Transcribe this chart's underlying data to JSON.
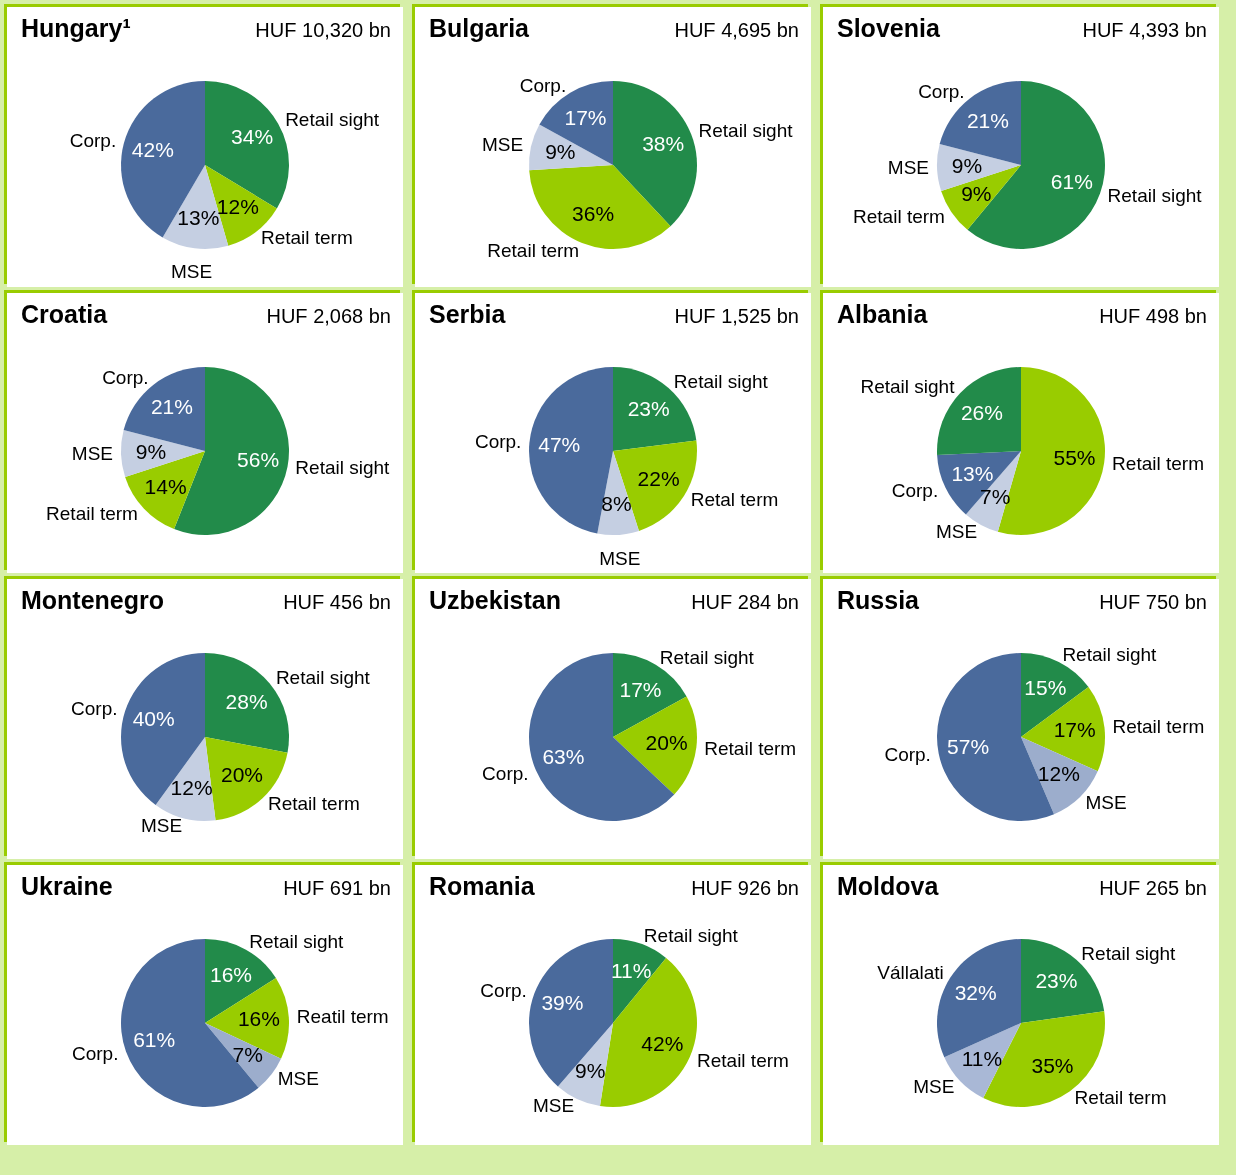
{
  "chart_data": [
    {
      "type": "pie",
      "title": "Hungary¹",
      "subtitle": "HUF 10,320 bn",
      "categories": [
        "Retail sight",
        "Retail term",
        "MSE",
        "Corp."
      ],
      "values": [
        34,
        12,
        13,
        42
      ],
      "value_labels": [
        "34%",
        "12%",
        "13%",
        "42%"
      ],
      "colors": [
        "#228b4a",
        "#99cc00",
        "#c5cfe2",
        "#4a6a9c"
      ]
    },
    {
      "type": "pie",
      "title": "Bulgaria",
      "subtitle": "HUF 4,695 bn",
      "categories": [
        "Retail sight",
        "Retail term",
        "MSE",
        "Corp."
      ],
      "values": [
        38,
        36,
        9,
        17
      ],
      "value_labels": [
        "38%",
        "36%",
        "9%",
        "17%"
      ],
      "colors": [
        "#228b4a",
        "#99cc00",
        "#c5cfe2",
        "#4a6a9c"
      ]
    },
    {
      "type": "pie",
      "title": "Slovenia",
      "subtitle": "HUF 4,393 bn",
      "categories": [
        "Retail sight",
        "Retail term",
        "MSE",
        "Corp."
      ],
      "values": [
        61,
        9,
        9,
        21
      ],
      "value_labels": [
        "61%",
        "9%",
        "9%",
        "21%"
      ],
      "colors": [
        "#228b4a",
        "#99cc00",
        "#c5cfe2",
        "#4a6a9c"
      ]
    },
    {
      "type": "pie",
      "title": "Croatia",
      "subtitle": "HUF 2,068 bn",
      "categories": [
        "Retail sight",
        "Retail term",
        "MSE",
        "Corp."
      ],
      "values": [
        56,
        14,
        9,
        21
      ],
      "value_labels": [
        "56%",
        "14%",
        "9%",
        "21%"
      ],
      "colors": [
        "#228b4a",
        "#99cc00",
        "#c5cfe2",
        "#4a6a9c"
      ]
    },
    {
      "type": "pie",
      "title": "Serbia",
      "subtitle": "HUF 1,525 bn",
      "categories": [
        "Retail sight",
        "Retal term",
        "MSE",
        "Corp."
      ],
      "values": [
        23,
        22,
        8,
        47
      ],
      "value_labels": [
        "23%",
        "22%",
        "8%",
        "47%"
      ],
      "colors": [
        "#228b4a",
        "#99cc00",
        "#c5cfe2",
        "#4a6a9c"
      ]
    },
    {
      "type": "pie",
      "title": "Albania",
      "subtitle": "HUF 498 bn",
      "categories": [
        "Retail term",
        "MSE",
        "Corp.",
        "Retail sight"
      ],
      "values": [
        55,
        7,
        13,
        26
      ],
      "value_labels": [
        "55%",
        "7%",
        "13%",
        "26%"
      ],
      "colors": [
        "#99cc00",
        "#c5cfe2",
        "#4a6a9c",
        "#228b4a"
      ]
    },
    {
      "type": "pie",
      "title": "Montenegro",
      "subtitle": "HUF 456 bn",
      "categories": [
        "Retail sight",
        "Retail term",
        "MSE",
        "Corp."
      ],
      "values": [
        28,
        20,
        12,
        40
      ],
      "value_labels": [
        "28%",
        "20%",
        "12%",
        "40%"
      ],
      "colors": [
        "#228b4a",
        "#99cc00",
        "#c5cfe2",
        "#4a6a9c"
      ]
    },
    {
      "type": "pie",
      "title": "Uzbekistan",
      "subtitle": "HUF 284 bn",
      "categories": [
        "Retail sight",
        "Retail term",
        "Corp."
      ],
      "values": [
        17,
        20,
        63
      ],
      "value_labels": [
        "17%",
        "20%",
        "63%"
      ],
      "colors": [
        "#228b4a",
        "#99cc00",
        "#4a6a9c"
      ]
    },
    {
      "type": "pie",
      "title": "Russia",
      "subtitle": "HUF 750 bn",
      "categories": [
        "Retail sight",
        "Retail term",
        "MSE",
        "Corp."
      ],
      "values": [
        15,
        17,
        12,
        57
      ],
      "value_labels": [
        "15%",
        "17%",
        "12%",
        "57%"
      ],
      "colors": [
        "#228b4a",
        "#99cc00",
        "#9cadcc",
        "#4a6a9c"
      ]
    },
    {
      "type": "pie",
      "title": "Ukraine",
      "subtitle": "HUF 691 bn",
      "categories": [
        "Retail sight",
        "Reatil term",
        "MSE",
        "Corp."
      ],
      "values": [
        16,
        16,
        7,
        61
      ],
      "value_labels": [
        "16%",
        "16%",
        "7%",
        "61%"
      ],
      "colors": [
        "#228b4a",
        "#99cc00",
        "#9cadcc",
        "#4a6a9c"
      ]
    },
    {
      "type": "pie",
      "title": "Romania",
      "subtitle": "HUF 926 bn",
      "categories": [
        "Retail sight",
        "Retail term",
        "MSE",
        "Corp."
      ],
      "values": [
        11,
        42,
        9,
        39
      ],
      "value_labels": [
        "11%",
        "42%",
        "9%",
        "39%"
      ],
      "colors": [
        "#228b4a",
        "#99cc00",
        "#c5cfe2",
        "#4a6a9c"
      ]
    },
    {
      "type": "pie",
      "title": "Moldova",
      "subtitle": "HUF 265 bn",
      "categories": [
        "Retail sight",
        "Retail term",
        "MSE",
        "Vállalati"
      ],
      "values": [
        23,
        35,
        11,
        32
      ],
      "value_labels": [
        "23%",
        "35%",
        "11%",
        "32%"
      ],
      "colors": [
        "#228b4a",
        "#99cc00",
        "#a9b8d6",
        "#4a6a9c"
      ]
    }
  ]
}
